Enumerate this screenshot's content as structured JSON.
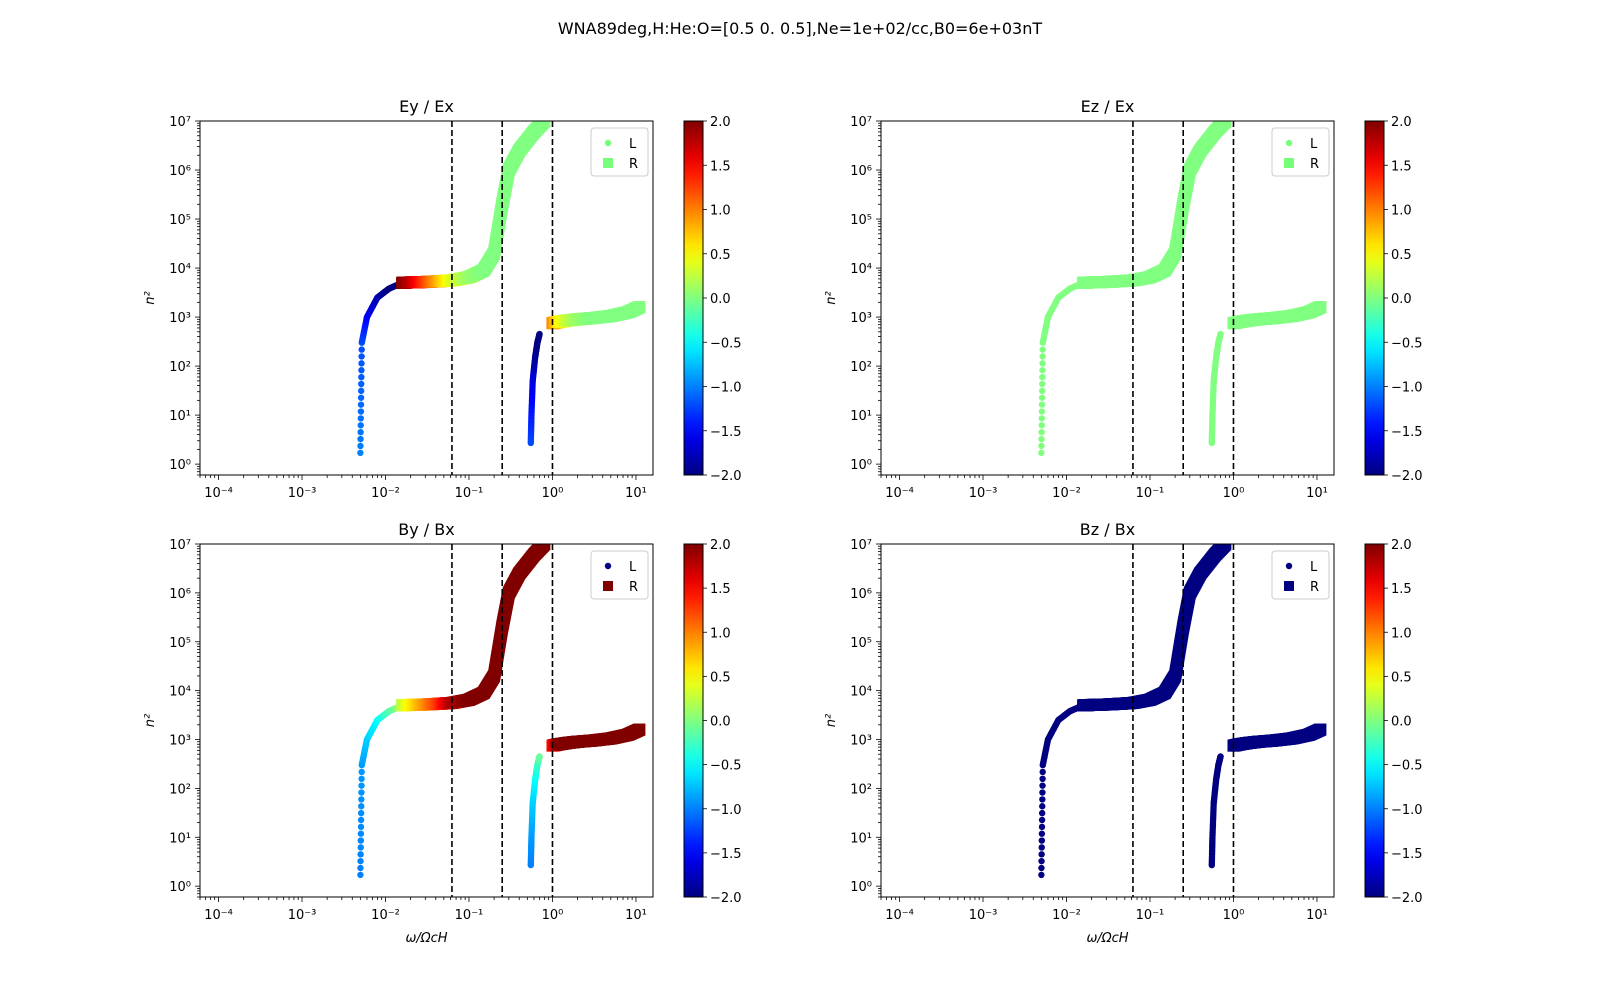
{
  "figure": {
    "suptitle": "WNA89deg,H:He:O=[0.5 0.  0.5],Ne=1e+02/cc,B0=6e+03nT"
  },
  "colorbar": {
    "min": -2.0,
    "max": 2.0,
    "ticks": [
      2.0,
      1.5,
      1.0,
      0.5,
      0.0,
      -0.5,
      -1.0,
      -1.5,
      -2.0
    ],
    "tick_labels": [
      "2.0",
      "1.5",
      "1.0",
      "0.5",
      "0.0",
      "−0.5",
      "−1.0",
      "−1.5",
      "−2.0"
    ],
    "colormap": "jet"
  },
  "chart_data": [
    {
      "type": "scatter",
      "title": "Ey / Ex",
      "xlabel": "",
      "ylabel": "n²",
      "x_scale": "log",
      "y_scale": "log",
      "xlim": [
        6e-05,
        16
      ],
      "ylim": [
        0.6,
        10000000
      ],
      "x_tick_labels": [
        "10⁻⁴",
        "10⁻³",
        "10⁻²",
        "10⁻¹",
        "10⁰",
        "10¹"
      ],
      "y_tick_labels": [
        "10⁰",
        "10¹",
        "10²",
        "10³",
        "10⁴",
        "10⁵",
        "10⁶",
        "10⁷"
      ],
      "vlines": [
        0.0625,
        0.25,
        1.0
      ],
      "legend": [
        "L",
        "R"
      ],
      "legend_position": "upper right",
      "legend_colors": [
        "#77ff7a",
        "#77ff7a"
      ],
      "series": [
        {
          "name": "L",
          "x": [
            0.005,
            0.0052,
            0.006,
            0.008,
            0.011,
            0.015,
            0.0158
          ],
          "y": [
            1.7,
            300,
            1000,
            2500,
            3800,
            4800,
            5000
          ],
          "color_values": [
            -1.0,
            -1.2,
            -1.5,
            -1.8,
            -2.0,
            -2.0,
            -2.0
          ]
        },
        {
          "name": "L",
          "x": [
            0.55,
            0.56,
            0.58,
            0.62,
            0.66,
            0.7
          ],
          "y": [
            2.7,
            10,
            50,
            150,
            300,
            450
          ],
          "color_values": [
            -1.2,
            -1.4,
            -1.6,
            -1.9,
            -2.0,
            -2.0
          ]
        },
        {
          "name": "R",
          "x": [
            0.0158,
            0.02,
            0.03,
            0.045,
            0.0625,
            0.1,
            0.15,
            0.2,
            0.25,
            0.3,
            0.4,
            0.6,
            0.8
          ],
          "y": [
            5000,
            5100,
            5200,
            5400,
            5600,
            6500,
            9000,
            20000,
            200000,
            1000000,
            2500000,
            6000000,
            10000000
          ],
          "color_values": [
            2.0,
            1.8,
            1.3,
            0.8,
            0.4,
            0.1,
            0.0,
            0.0,
            0.0,
            0.0,
            0.0,
            0.0,
            0.0
          ]
        },
        {
          "name": "R",
          "x": [
            1.0,
            1.2,
            1.5,
            2,
            3,
            5,
            8,
            11
          ],
          "y": [
            750,
            800,
            850,
            900,
            950,
            1050,
            1250,
            1600
          ],
          "color_values": [
            1.0,
            0.6,
            0.3,
            0.1,
            0.0,
            0.0,
            0.0,
            0.0
          ]
        }
      ]
    },
    {
      "type": "scatter",
      "title": "Ez / Ex",
      "xlabel": "",
      "ylabel": "n²",
      "x_scale": "log",
      "y_scale": "log",
      "xlim": [
        6e-05,
        16
      ],
      "ylim": [
        0.6,
        10000000
      ],
      "x_tick_labels": [
        "10⁻⁴",
        "10⁻³",
        "10⁻²",
        "10⁻¹",
        "10⁰",
        "10¹"
      ],
      "y_tick_labels": [
        "10⁰",
        "10¹",
        "10²",
        "10³",
        "10⁴",
        "10⁵",
        "10⁶",
        "10⁷"
      ],
      "vlines": [
        0.0625,
        0.25,
        1.0
      ],
      "legend": [
        "L",
        "R"
      ],
      "legend_position": "upper right",
      "legend_colors": [
        "#77ff7a",
        "#77ff7a"
      ],
      "series": [
        {
          "name": "L",
          "x": [
            0.005,
            0.0052,
            0.006,
            0.008,
            0.011,
            0.015,
            0.0158
          ],
          "y": [
            1.7,
            300,
            1000,
            2500,
            3800,
            4800,
            5000
          ],
          "color_values": [
            0,
            0,
            0,
            0,
            0,
            0,
            0
          ]
        },
        {
          "name": "L",
          "x": [
            0.55,
            0.56,
            0.58,
            0.62,
            0.66,
            0.7
          ],
          "y": [
            2.7,
            10,
            50,
            150,
            300,
            450
          ],
          "color_values": [
            0,
            0,
            0,
            0,
            0,
            0
          ]
        },
        {
          "name": "R",
          "x": [
            0.0158,
            0.02,
            0.03,
            0.045,
            0.0625,
            0.1,
            0.15,
            0.2,
            0.25,
            0.3,
            0.4,
            0.6,
            0.8
          ],
          "y": [
            5000,
            5100,
            5200,
            5400,
            5600,
            6500,
            9000,
            20000,
            200000,
            1000000,
            2500000,
            6000000,
            10000000
          ],
          "color_values": [
            0,
            0,
            0,
            0,
            0,
            0,
            0,
            0,
            0,
            0,
            0,
            0,
            0
          ]
        },
        {
          "name": "R",
          "x": [
            1.0,
            1.2,
            1.5,
            2,
            3,
            5,
            8,
            11
          ],
          "y": [
            750,
            800,
            850,
            900,
            950,
            1050,
            1250,
            1600
          ],
          "color_values": [
            0,
            0,
            0,
            0,
            0,
            0,
            0,
            0
          ]
        }
      ]
    },
    {
      "type": "scatter",
      "title": "By / Bx",
      "xlabel": "ω/ΩcH",
      "ylabel": "n²",
      "x_scale": "log",
      "y_scale": "log",
      "xlim": [
        6e-05,
        16
      ],
      "ylim": [
        0.6,
        10000000
      ],
      "x_tick_labels": [
        "10⁻⁴",
        "10⁻³",
        "10⁻²",
        "10⁻¹",
        "10⁰",
        "10¹"
      ],
      "y_tick_labels": [
        "10⁰",
        "10¹",
        "10²",
        "10³",
        "10⁴",
        "10⁵",
        "10⁶",
        "10⁷"
      ],
      "vlines": [
        0.0625,
        0.25,
        1.0
      ],
      "legend": [
        "L",
        "R"
      ],
      "legend_position": "upper right",
      "legend_colors": [
        "#000080",
        "#800000"
      ],
      "series": [
        {
          "name": "L",
          "x": [
            0.005,
            0.0052,
            0.006,
            0.008,
            0.011,
            0.015,
            0.0158
          ],
          "y": [
            1.7,
            300,
            1000,
            2500,
            3800,
            4800,
            5000
          ],
          "color_values": [
            -1.0,
            -0.9,
            -0.7,
            -0.5,
            -0.2,
            0.1,
            0.3
          ]
        },
        {
          "name": "L",
          "x": [
            0.55,
            0.56,
            0.58,
            0.62,
            0.66,
            0.7
          ],
          "y": [
            2.7,
            10,
            50,
            150,
            300,
            450
          ],
          "color_values": [
            -1.0,
            -0.9,
            -0.7,
            -0.5,
            -0.3,
            -0.1
          ]
        },
        {
          "name": "R",
          "x": [
            0.0158,
            0.02,
            0.03,
            0.045,
            0.0625,
            0.1,
            0.15,
            0.2,
            0.25,
            0.3,
            0.4,
            0.6,
            0.8
          ],
          "y": [
            5000,
            5100,
            5200,
            5400,
            5600,
            6500,
            9000,
            20000,
            200000,
            1000000,
            2500000,
            6000000,
            10000000
          ],
          "color_values": [
            0.2,
            0.5,
            0.9,
            1.3,
            1.8,
            2.0,
            2.0,
            2.0,
            2.0,
            2.0,
            2.0,
            2.0,
            2.0
          ]
        },
        {
          "name": "R",
          "x": [
            1.0,
            1.2,
            1.5,
            2,
            3,
            5,
            8,
            11
          ],
          "y": [
            750,
            800,
            850,
            900,
            950,
            1050,
            1250,
            1600
          ],
          "color_values": [
            1.4,
            2.0,
            2.0,
            2.0,
            2.0,
            2.0,
            2.0,
            2.0
          ]
        }
      ]
    },
    {
      "type": "scatter",
      "title": "Bz / Bx",
      "xlabel": "ω/ΩcH",
      "ylabel": "n²",
      "x_scale": "log",
      "y_scale": "log",
      "xlim": [
        6e-05,
        16
      ],
      "ylim": [
        0.6,
        10000000
      ],
      "x_tick_labels": [
        "10⁻⁴",
        "10⁻³",
        "10⁻²",
        "10⁻¹",
        "10⁰",
        "10¹"
      ],
      "y_tick_labels": [
        "10⁰",
        "10¹",
        "10²",
        "10³",
        "10⁴",
        "10⁵",
        "10⁶",
        "10⁷"
      ],
      "vlines": [
        0.0625,
        0.25,
        1.0
      ],
      "legend": [
        "L",
        "R"
      ],
      "legend_position": "upper right",
      "legend_colors": [
        "#000080",
        "#000080"
      ],
      "series": [
        {
          "name": "L",
          "x": [
            0.005,
            0.0052,
            0.006,
            0.008,
            0.011,
            0.015,
            0.0158
          ],
          "y": [
            1.7,
            300,
            1000,
            2500,
            3800,
            4800,
            5000
          ],
          "color_values": [
            -2,
            -2,
            -2,
            -2,
            -2,
            -2,
            -2
          ]
        },
        {
          "name": "L",
          "x": [
            0.55,
            0.56,
            0.58,
            0.62,
            0.66,
            0.7
          ],
          "y": [
            2.7,
            10,
            50,
            150,
            300,
            450
          ],
          "color_values": [
            -2,
            -2,
            -2,
            -2,
            -2,
            -2
          ]
        },
        {
          "name": "R",
          "x": [
            0.0158,
            0.02,
            0.03,
            0.045,
            0.0625,
            0.1,
            0.15,
            0.2,
            0.25,
            0.3,
            0.4,
            0.6,
            0.8
          ],
          "y": [
            5000,
            5100,
            5200,
            5400,
            5600,
            6500,
            9000,
            20000,
            200000,
            1000000,
            2500000,
            6000000,
            10000000
          ],
          "color_values": [
            -2,
            -2,
            -2,
            -2,
            -2,
            -2,
            -2,
            -2,
            -2,
            -2,
            -2,
            -2,
            -2
          ]
        },
        {
          "name": "R",
          "x": [
            1.0,
            1.2,
            1.5,
            2,
            3,
            5,
            8,
            11
          ],
          "y": [
            750,
            800,
            850,
            900,
            950,
            1050,
            1250,
            1600
          ],
          "color_values": [
            -2,
            -2,
            -2,
            -2,
            -2,
            -2,
            -2,
            -2
          ]
        }
      ]
    }
  ]
}
